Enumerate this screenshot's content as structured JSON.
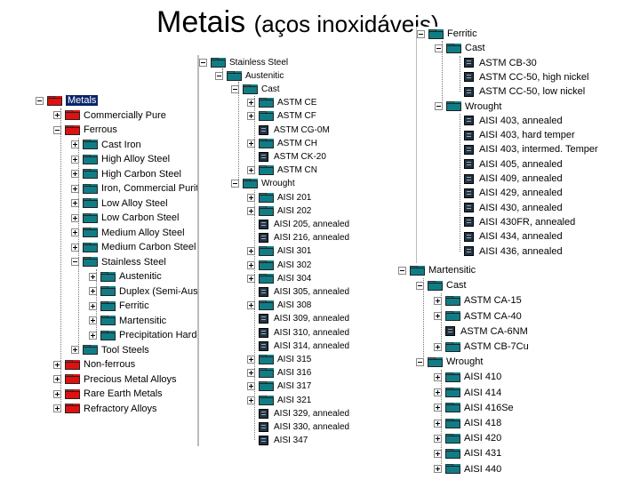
{
  "slide": {
    "title_main": "Metais",
    "title_sub": "(aços inoxidáveis)"
  },
  "colors": {
    "folder_red": "#e01010",
    "folder_teal": "#107d86",
    "selection": "#0a246a"
  },
  "tree_metals": {
    "items": [
      {
        "label": "Metals",
        "depth": 0,
        "toggle": "minus",
        "icon": "folder-red"
      },
      {
        "label": "Commercially Pure",
        "depth": 1,
        "toggle": "plus",
        "icon": "folder-red"
      },
      {
        "label": "Ferrous",
        "depth": 1,
        "toggle": "minus",
        "icon": "folder-red"
      },
      {
        "label": "Cast Iron",
        "depth": 2,
        "toggle": "plus",
        "icon": "folder-teal"
      },
      {
        "label": "High Alloy Steel",
        "depth": 2,
        "toggle": "plus",
        "icon": "folder-teal"
      },
      {
        "label": "High Carbon Steel",
        "depth": 2,
        "toggle": "plus",
        "icon": "folder-teal"
      },
      {
        "label": "Iron, Commercial Purity",
        "depth": 2,
        "toggle": "plus",
        "icon": "folder-teal"
      },
      {
        "label": "Low Alloy Steel",
        "depth": 2,
        "toggle": "plus",
        "icon": "folder-teal"
      },
      {
        "label": "Low Carbon Steel",
        "depth": 2,
        "toggle": "plus",
        "icon": "folder-teal"
      },
      {
        "label": "Medium Alloy Steel",
        "depth": 2,
        "toggle": "plus",
        "icon": "folder-teal"
      },
      {
        "label": "Medium Carbon Steel",
        "depth": 2,
        "toggle": "plus",
        "icon": "folder-teal"
      },
      {
        "label": "Stainless Steel",
        "depth": 2,
        "toggle": "minus",
        "icon": "folder-teal"
      },
      {
        "label": "Austenitic",
        "depth": 3,
        "toggle": "plus",
        "icon": "folder-teal"
      },
      {
        "label": "Duplex (Semi-Austenitic)",
        "depth": 3,
        "toggle": "plus",
        "icon": "folder-teal"
      },
      {
        "label": "Ferritic",
        "depth": 3,
        "toggle": "plus",
        "icon": "folder-teal"
      },
      {
        "label": "Martensitic",
        "depth": 3,
        "toggle": "plus",
        "icon": "folder-teal"
      },
      {
        "label": "Precipitation Hardening",
        "depth": 3,
        "toggle": "plus",
        "icon": "folder-teal"
      },
      {
        "label": "Tool Steels",
        "depth": 2,
        "toggle": "plus",
        "icon": "folder-teal"
      },
      {
        "label": "Non-ferrous",
        "depth": 1,
        "toggle": "plus",
        "icon": "folder-red"
      },
      {
        "label": "Precious Metal Alloys",
        "depth": 1,
        "toggle": "plus",
        "icon": "folder-red"
      },
      {
        "label": "Rare Earth Metals",
        "depth": 1,
        "toggle": "plus",
        "icon": "folder-red"
      },
      {
        "label": "Refractory Alloys",
        "depth": 1,
        "toggle": "plus",
        "icon": "folder-red"
      }
    ]
  },
  "tree_austenitic": {
    "items": [
      {
        "label": "Stainless Steel",
        "depth": 0,
        "toggle": "minus",
        "icon": "folder-teal"
      },
      {
        "label": "Austenitic",
        "depth": 1,
        "toggle": "minus",
        "icon": "folder-teal"
      },
      {
        "label": "Cast",
        "depth": 2,
        "toggle": "minus",
        "icon": "folder-teal"
      },
      {
        "label": "ASTM CE",
        "depth": 3,
        "toggle": "plus",
        "icon": "folder-teal"
      },
      {
        "label": "ASTM CF",
        "depth": 3,
        "toggle": "plus",
        "icon": "folder-teal"
      },
      {
        "label": "ASTM CG-0M",
        "depth": 3,
        "toggle": "none",
        "icon": "doc"
      },
      {
        "label": "ASTM CH",
        "depth": 3,
        "toggle": "plus",
        "icon": "folder-teal"
      },
      {
        "label": "ASTM CK-20",
        "depth": 3,
        "toggle": "none",
        "icon": "doc"
      },
      {
        "label": "ASTM CN",
        "depth": 3,
        "toggle": "plus",
        "icon": "folder-teal"
      },
      {
        "label": "Wrought",
        "depth": 2,
        "toggle": "minus",
        "icon": "folder-teal"
      },
      {
        "label": "AISI 201",
        "depth": 3,
        "toggle": "plus",
        "icon": "folder-teal"
      },
      {
        "label": "AISI 202",
        "depth": 3,
        "toggle": "plus",
        "icon": "folder-teal"
      },
      {
        "label": "AISI 205, annealed",
        "depth": 3,
        "toggle": "none",
        "icon": "doc"
      },
      {
        "label": "AISI 216, annealed",
        "depth": 3,
        "toggle": "none",
        "icon": "doc"
      },
      {
        "label": "AISI 301",
        "depth": 3,
        "toggle": "plus",
        "icon": "folder-teal"
      },
      {
        "label": "AISI 302",
        "depth": 3,
        "toggle": "plus",
        "icon": "folder-teal"
      },
      {
        "label": "AISI 304",
        "depth": 3,
        "toggle": "plus",
        "icon": "folder-teal"
      },
      {
        "label": "AISI 305, annealed",
        "depth": 3,
        "toggle": "none",
        "icon": "doc"
      },
      {
        "label": "AISI 308",
        "depth": 3,
        "toggle": "plus",
        "icon": "folder-teal"
      },
      {
        "label": "AISI 309, annealed",
        "depth": 3,
        "toggle": "none",
        "icon": "doc"
      },
      {
        "label": "AISI 310, annealed",
        "depth": 3,
        "toggle": "none",
        "icon": "doc"
      },
      {
        "label": "AISI 314, annealed",
        "depth": 3,
        "toggle": "none",
        "icon": "doc"
      },
      {
        "label": "AISI 315",
        "depth": 3,
        "toggle": "plus",
        "icon": "folder-teal"
      },
      {
        "label": "AISI 316",
        "depth": 3,
        "toggle": "plus",
        "icon": "folder-teal"
      },
      {
        "label": "AISI 317",
        "depth": 3,
        "toggle": "plus",
        "icon": "folder-teal"
      },
      {
        "label": "AISI 321",
        "depth": 3,
        "toggle": "plus",
        "icon": "folder-teal"
      },
      {
        "label": "AISI 329, annealed",
        "depth": 3,
        "toggle": "none",
        "icon": "doc"
      },
      {
        "label": "AISI 330, annealed",
        "depth": 3,
        "toggle": "none",
        "icon": "doc"
      },
      {
        "label": "AISI 347",
        "depth": 3,
        "toggle": "none",
        "icon": "doc"
      }
    ]
  },
  "tree_ferritic": {
    "items": [
      {
        "label": "Ferritic",
        "depth": 0,
        "toggle": "minus",
        "icon": "folder-teal"
      },
      {
        "label": "Cast",
        "depth": 1,
        "toggle": "minus",
        "icon": "folder-teal"
      },
      {
        "label": "ASTM CB-30",
        "depth": 2,
        "toggle": "none",
        "icon": "doc"
      },
      {
        "label": "ASTM CC-50, high nickel",
        "depth": 2,
        "toggle": "none",
        "icon": "doc"
      },
      {
        "label": "ASTM CC-50, low nickel",
        "depth": 2,
        "toggle": "none",
        "icon": "doc"
      },
      {
        "label": "Wrought",
        "depth": 1,
        "toggle": "minus",
        "icon": "folder-teal"
      },
      {
        "label": "AISI 403, annealed",
        "depth": 2,
        "toggle": "none",
        "icon": "doc"
      },
      {
        "label": "AISI 403, hard temper",
        "depth": 2,
        "toggle": "none",
        "icon": "doc"
      },
      {
        "label": "AISI 403, intermed. Temper",
        "depth": 2,
        "toggle": "none",
        "icon": "doc"
      },
      {
        "label": "AISI 405, annealed",
        "depth": 2,
        "toggle": "none",
        "icon": "doc"
      },
      {
        "label": "AISI 409, annealed",
        "depth": 2,
        "toggle": "none",
        "icon": "doc"
      },
      {
        "label": "AISI 429, annealed",
        "depth": 2,
        "toggle": "none",
        "icon": "doc"
      },
      {
        "label": "AISI 430, annealed",
        "depth": 2,
        "toggle": "none",
        "icon": "doc"
      },
      {
        "label": "AISI 430FR, annealed",
        "depth": 2,
        "toggle": "none",
        "icon": "doc"
      },
      {
        "label": "AISI 434, annealed",
        "depth": 2,
        "toggle": "none",
        "icon": "doc"
      },
      {
        "label": "AISI 436, annealed",
        "depth": 2,
        "toggle": "none",
        "icon": "doc"
      }
    ]
  },
  "tree_martensitic": {
    "items": [
      {
        "label": "Martensitic",
        "depth": 0,
        "toggle": "minus",
        "icon": "folder-teal"
      },
      {
        "label": "Cast",
        "depth": 1,
        "toggle": "minus",
        "icon": "folder-teal"
      },
      {
        "label": "ASTM CA-15",
        "depth": 2,
        "toggle": "plus",
        "icon": "folder-teal"
      },
      {
        "label": "ASTM CA-40",
        "depth": 2,
        "toggle": "plus",
        "icon": "folder-teal"
      },
      {
        "label": "ASTM CA-6NM",
        "depth": 2,
        "toggle": "none",
        "icon": "doc"
      },
      {
        "label": "ASTM CB-7Cu",
        "depth": 2,
        "toggle": "plus",
        "icon": "folder-teal"
      },
      {
        "label": "Wrought",
        "depth": 1,
        "toggle": "minus",
        "icon": "folder-teal"
      },
      {
        "label": "AISI 410",
        "depth": 2,
        "toggle": "plus",
        "icon": "folder-teal"
      },
      {
        "label": "AISI 414",
        "depth": 2,
        "toggle": "plus",
        "icon": "folder-teal"
      },
      {
        "label": "AISI 416Se",
        "depth": 2,
        "toggle": "plus",
        "icon": "folder-teal"
      },
      {
        "label": "AISI 418",
        "depth": 2,
        "toggle": "plus",
        "icon": "folder-teal"
      },
      {
        "label": "AISI 420",
        "depth": 2,
        "toggle": "plus",
        "icon": "folder-teal"
      },
      {
        "label": "AISI 431",
        "depth": 2,
        "toggle": "plus",
        "icon": "folder-teal"
      },
      {
        "label": "AISI 440",
        "depth": 2,
        "toggle": "plus",
        "icon": "folder-teal"
      }
    ]
  }
}
